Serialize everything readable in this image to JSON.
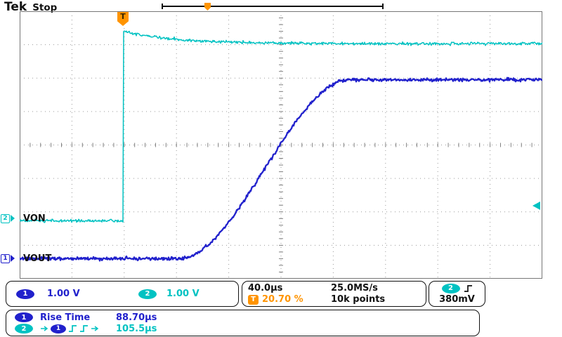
{
  "header": {
    "brand": "Tek",
    "status": "Stop"
  },
  "trigger_flag": "T",
  "channel_markers": {
    "ch1": "1",
    "ch2": "2"
  },
  "wave_labels": {
    "ch1": "VOUT",
    "ch2": "VON"
  },
  "readouts": {
    "ch1_badge": "1",
    "ch1_scale": "1.00 V",
    "ch2_badge": "2",
    "ch2_scale": "1.00 V",
    "timebase": "40.0µs",
    "sample_rate": "25.0MS/s",
    "record_length": "10k points",
    "trigger_badge": "T",
    "trigger_position": "20.70 %",
    "trigger_source_badge": "2",
    "trigger_level": "380mV"
  },
  "measurements": {
    "row1": {
      "badge": "1",
      "name": "Rise Time",
      "value": "88.70µs"
    },
    "row2": {
      "badge_src": "2",
      "badge_dst": "1",
      "value": "105.5µs"
    }
  },
  "colors": {
    "ch1": "#2121cc",
    "ch2": "#00c2c2",
    "trigger": "#ff9400",
    "grid": "#9a9a9a"
  },
  "chart_data": {
    "type": "line",
    "title": "Oscilloscope capture: VON step and VOUT soft-start ramp",
    "x_unit": "µs",
    "y_unit": "V",
    "time_per_div_us": 40,
    "x_divisions": 10,
    "volts_per_div": 1,
    "y_divisions": 8,
    "total_time_us": 400,
    "grid": "dotted",
    "trigger": {
      "source": "CH2",
      "level_v": 0.38,
      "position_fraction": 0.207,
      "slope": "rising"
    },
    "series": [
      {
        "name": "VON",
        "channel": 2,
        "color": "#00c2c2",
        "shape": "step",
        "ground_div_from_top": 6.2,
        "low_v": -0.07,
        "high_v": 5.23,
        "overshoot_v": 5.6,
        "step_at_fraction": 0.198,
        "decay_tau_us": 40,
        "noise_v": 0.045
      },
      {
        "name": "VOUT",
        "channel": 1,
        "color": "#2121cc",
        "shape": "s-ramp",
        "ground_div_from_top": 7.4,
        "low_v": 0.0,
        "high_v": 5.35,
        "ramp_start_fraction": 0.3055,
        "ramp_end_fraction": 0.631,
        "rise_time_10_90_us": 88.7,
        "noise_v": 0.05
      }
    ],
    "measurements": [
      {
        "channel": 1,
        "name": "Rise Time",
        "value_us": 88.7
      },
      {
        "name": "Delay rise(CH2) to rise(CH1)",
        "value_us": 105.5
      }
    ]
  }
}
